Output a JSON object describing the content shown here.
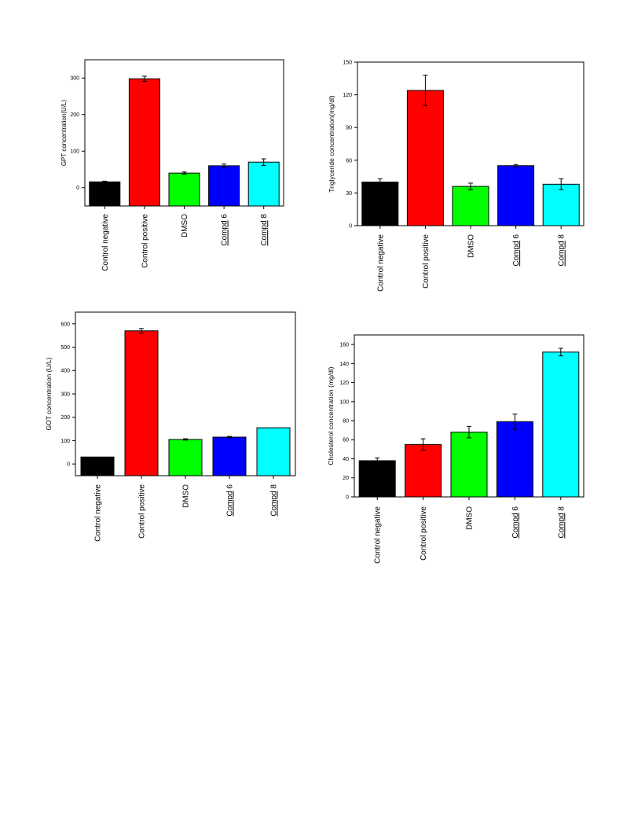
{
  "chart_data": [
    {
      "id": "gpt",
      "type": "bar",
      "ylabel": "GPT concentration(U/L)",
      "ylim": [
        -50,
        350
      ],
      "yticks": [
        0,
        100,
        200,
        300
      ],
      "categories": [
        {
          "text": "Control negative",
          "spell": false
        },
        {
          "text": "Control positive",
          "spell": false
        },
        {
          "text": "DMSO",
          "spell": false
        },
        {
          "text": "Compd 6",
          "spell": true
        },
        {
          "text": "Compd 8",
          "spell": true
        }
      ],
      "values": [
        16,
        298,
        40,
        60,
        70
      ],
      "errors": [
        2,
        7,
        3,
        5,
        9
      ],
      "colors": [
        "#000000",
        "#ff0000",
        "#00ff00",
        "#0000ff",
        "#00ffff"
      ],
      "grid": false
    },
    {
      "id": "tg",
      "type": "bar",
      "ylabel": "Triglyceride concentration(mg/dl)",
      "ylim": [
        0,
        150
      ],
      "yticks": [
        0,
        30,
        60,
        90,
        120,
        150
      ],
      "categories": [
        {
          "text": "Control negative",
          "spell": false
        },
        {
          "text": "Control positive",
          "spell": false
        },
        {
          "text": "DMSO",
          "spell": false
        },
        {
          "text": "Compd 6",
          "spell": true
        },
        {
          "text": "Compd 8",
          "spell": true
        }
      ],
      "values": [
        40,
        124,
        36,
        55,
        38
      ],
      "errors": [
        3,
        14,
        3,
        1,
        5
      ],
      "colors": [
        "#000000",
        "#ff0000",
        "#00ff00",
        "#0000ff",
        "#00ffff"
      ],
      "grid": false
    },
    {
      "id": "got",
      "type": "bar",
      "ylabel": "GOT concentration (U/L)",
      "ylim": [
        -50,
        650
      ],
      "yticks": [
        0,
        100,
        200,
        300,
        400,
        500,
        600
      ],
      "categories": [
        {
          "text": "Control negative",
          "spell": false
        },
        {
          "text": "Control positive",
          "spell": false
        },
        {
          "text": "DMSO",
          "spell": false
        },
        {
          "text": "Compd 6",
          "spell": true
        },
        {
          "text": "Compd 8",
          "spell": true
        }
      ],
      "values": [
        30,
        570,
        105,
        115,
        155
      ],
      "errors": [
        0,
        10,
        3,
        3,
        0
      ],
      "colors": [
        "#000000",
        "#ff0000",
        "#00ff00",
        "#0000ff",
        "#00ffff"
      ],
      "grid": false
    },
    {
      "id": "chol",
      "type": "bar",
      "ylabel": "Cholesterol concentration (mg/dl)",
      "ylim": [
        0,
        170
      ],
      "yticks": [
        0,
        20,
        40,
        60,
        80,
        100,
        120,
        140,
        160
      ],
      "categories": [
        {
          "text": "Control negative",
          "spell": false
        },
        {
          "text": "Control positive",
          "spell": false
        },
        {
          "text": "DMSO",
          "spell": false
        },
        {
          "text": "Compd 6",
          "spell": true
        },
        {
          "text": "Compd 8",
          "spell": true
        }
      ],
      "values": [
        38,
        55,
        68,
        79,
        152
      ],
      "errors": [
        3,
        6,
        6,
        8,
        4
      ],
      "colors": [
        "#000000",
        "#ff0000",
        "#00ff00",
        "#0000ff",
        "#00ffff"
      ],
      "grid": false
    }
  ]
}
